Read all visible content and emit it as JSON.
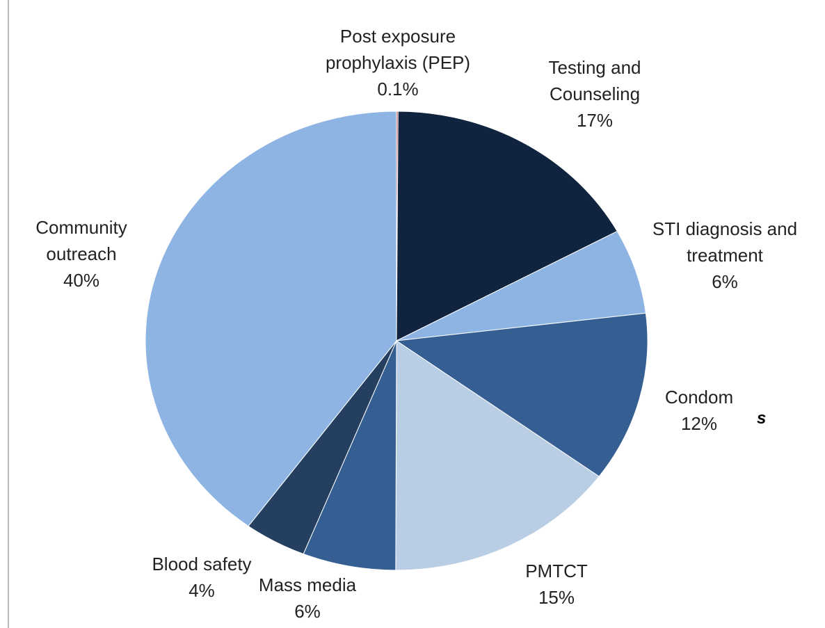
{
  "chart_data": {
    "type": "pie",
    "categories": [
      "Post exposure prophylaxis (PEP)",
      "Testing and Counseling",
      "STI diagnosis and treatment",
      "Condom",
      "PMTCT",
      "Mass media",
      "Blood safety",
      "Community outreach"
    ],
    "values": [
      0.1,
      17,
      6,
      12,
      15,
      6,
      4,
      40
    ],
    "value_labels": [
      "0.1%",
      "17%",
      "6%",
      "12%",
      "15%",
      "6%",
      "4%",
      "40%"
    ],
    "colors": [
      "#c0504d",
      "#10233f",
      "#8eb4e3",
      "#355f93",
      "#b9cde5",
      "#355f93",
      "#243f60",
      "#8eb4e3"
    ],
    "annotation": "s"
  }
}
